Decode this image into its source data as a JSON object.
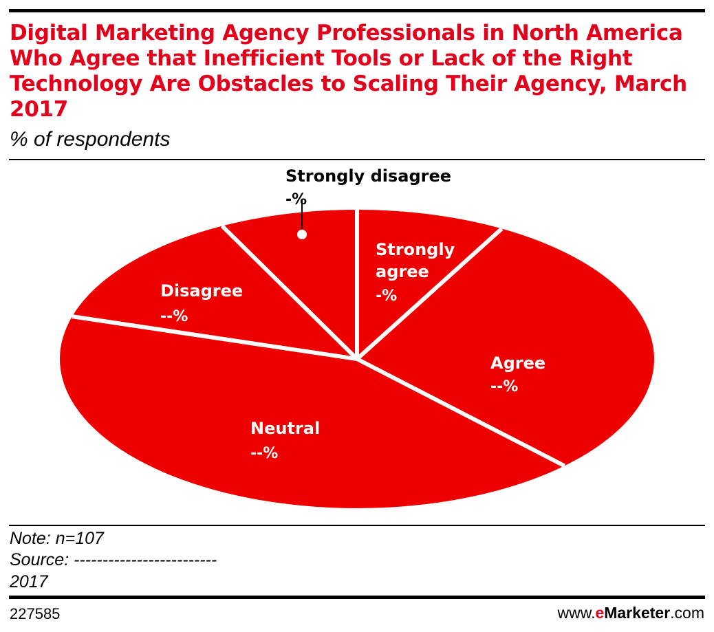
{
  "header": {
    "title": "Digital Marketing Agency Professionals in North America Who Agree that Inefficient Tools or Lack of the Right Technology Are Obstacles to Scaling Their Agency, March 2017",
    "subtitle": "% of respondents"
  },
  "chart_data": {
    "type": "pie",
    "categories": [
      "Strongly agree",
      "Agree",
      "Neutral",
      "Disagree",
      "Strongly disagree"
    ],
    "values": [
      8.1,
      29.6,
      41.9,
      12.9,
      7.5
    ],
    "value_labels": [
      "-%",
      "--%",
      "--%",
      "--%",
      "-%"
    ],
    "slice_color": "#ef0000",
    "separator_color": "#ffffff"
  },
  "footer": {
    "note": "Note: n=107",
    "source": "Source: -------------------------",
    "year": "2017",
    "chart_id": "227585",
    "brand_prefix": "www.",
    "brand_e": "e",
    "brand_name": "Marketer",
    "brand_suffix": ".com"
  }
}
